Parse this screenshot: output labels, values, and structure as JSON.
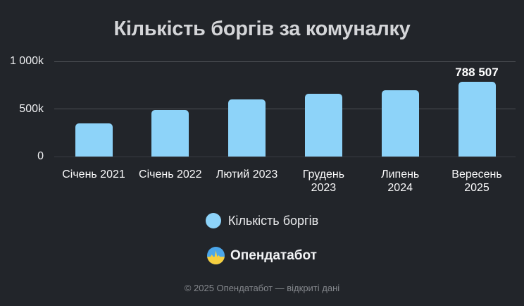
{
  "chart_data": {
    "type": "bar",
    "title": "Кількість боргів за комуналку",
    "series_name": "Кількість боргів",
    "categories": [
      "Січень 2021",
      "Січень 2022",
      "Лютий 2023",
      "Грудень 2023",
      "Липень 2024",
      "Вересень 2025"
    ],
    "category_label_lines": [
      [
        "Січень 2021"
      ],
      [
        "Січень 2022"
      ],
      [
        "Лютий 2023"
      ],
      [
        "Грудень",
        "2023"
      ],
      [
        "Липень",
        "2024"
      ],
      [
        "Вересень",
        "2025"
      ]
    ],
    "values": [
      350000,
      490000,
      600000,
      660000,
      695000,
      788507
    ],
    "value_labels": [
      "",
      "",
      "",
      "",
      "",
      "788 507"
    ],
    "xlabel": "",
    "ylabel": "",
    "ylim": [
      0,
      1000000
    ],
    "yticks": [
      0,
      500000,
      1000000
    ],
    "ytick_labels": [
      "0",
      "500k",
      "1 000k"
    ],
    "grid": true,
    "legend_position": "bottom",
    "bar_color": "#8DD3F9"
  },
  "legend": {
    "label": "Кількість боргів",
    "marker_color": "#8DD3F9"
  },
  "brand": {
    "name": "Опендатабот",
    "logo_top_color": "#4BA6EA",
    "logo_bottom_color": "#F6CF3F"
  },
  "footer": {
    "text": "© 2025 Опендатабот — відкриті дані"
  },
  "colors": {
    "background": "#22252A",
    "gridline": "#4B4E54",
    "title_text": "#D4D5D8",
    "axis_text": "#FAFAFB",
    "value_label_text": "#FFFFFF",
    "footer_text": "#85888D"
  }
}
